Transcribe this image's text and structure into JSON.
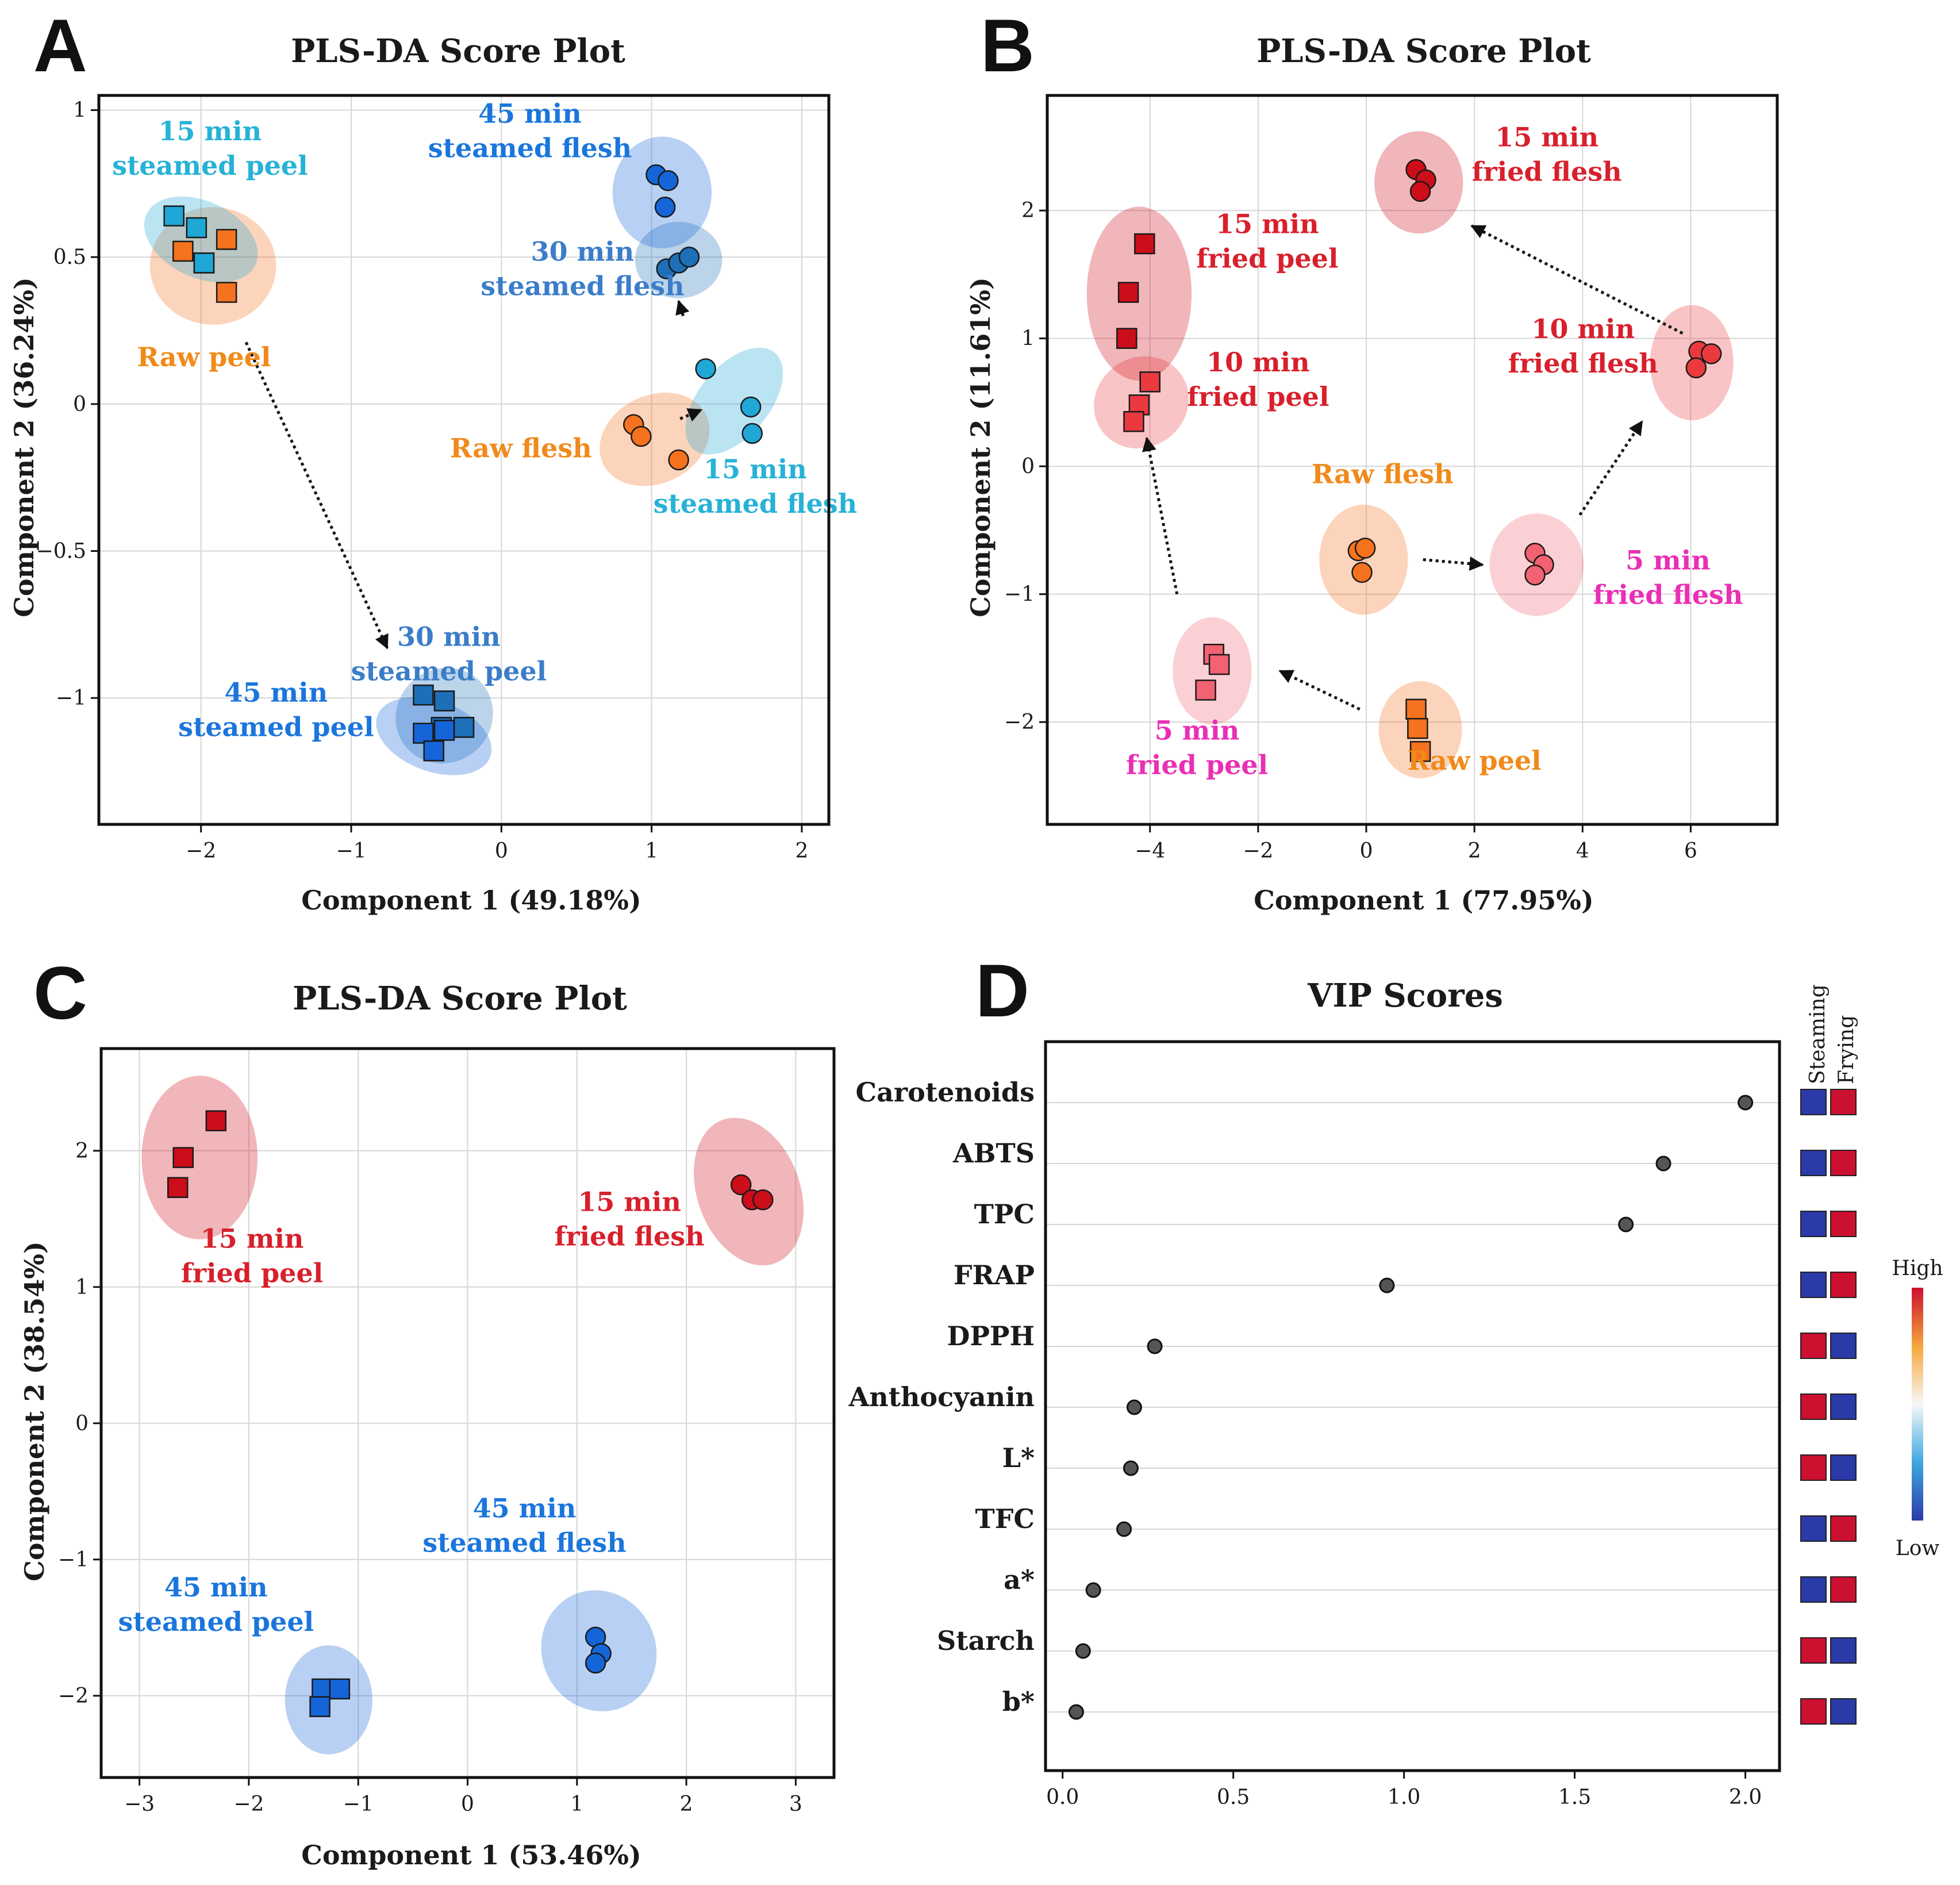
{
  "colors": {
    "raw": "#f5721e",
    "raw_label": "#f08a1a",
    "steam15": "#1fa7d6",
    "steam15_label": "#27b2d6",
    "steam30": "#1d6fb8",
    "steam30_label": "#3b7dc8",
    "steam45": "#1565d8",
    "steam45_label": "#1a76dc",
    "fry_dark": "#cc0d1a",
    "fry_label": "#d8202c",
    "fry10": "#ea3a40",
    "fry5": "#f26272",
    "fry5_label": "#e930b4",
    "vip_red": "#cc1030",
    "vip_blue": "#2a3aa8"
  },
  "chart_data": [
    {
      "id": "A",
      "panel_letter": "A",
      "type": "scatter",
      "title": "PLS-DA Score Plot",
      "xlabel": "Component 1 (49.18%)",
      "ylabel": "Component 2 (36.24%)",
      "xlim": [
        -2.68,
        2.18
      ],
      "ylim": [
        -1.43,
        1.05
      ],
      "xticks": [
        -2,
        -1,
        0,
        1,
        2
      ],
      "xtick_labels": [
        "−2",
        "−1",
        "0",
        "1",
        "2"
      ],
      "yticks": [
        1,
        0.5,
        0,
        -0.5,
        -1
      ],
      "ytick_labels": [
        "1",
        "0.5",
        "0",
        "−0.5",
        "−1"
      ],
      "groups": [
        {
          "name": "Raw peel",
          "marker": "square",
          "color": "#f5721e",
          "label_color": "#f08a1a",
          "label": [
            "Raw peel"
          ],
          "label_pos": [
            -1.98,
            0.16
          ],
          "ellipse": {
            "cx": -1.92,
            "cy": 0.47,
            "rx": 0.42,
            "ry": 0.2,
            "angle": 0
          },
          "points": [
            [
              -1.83,
              0.56
            ],
            [
              -2.12,
              0.52
            ],
            [
              -1.98,
              0.48
            ],
            [
              -1.83,
              0.38
            ]
          ]
        },
        {
          "name": "15 min steamed peel",
          "marker": "square",
          "color": "#1fa7d6",
          "label_color": "#27b2d6",
          "label": [
            "15 min",
            "steamed peel"
          ],
          "label_pos": [
            -1.94,
            0.87
          ],
          "ellipse": {
            "cx": -2.0,
            "cy": 0.56,
            "rx": 0.4,
            "ry": 0.13,
            "angle": 25
          },
          "points": [
            [
              -2.18,
              0.64
            ],
            [
              -2.03,
              0.6
            ],
            [
              -1.98,
              0.48
            ]
          ]
        },
        {
          "name": "30 min steamed peel",
          "marker": "square",
          "color": "#1d6fb8",
          "label_color": "#3b7dc8",
          "label": [
            "30 min",
            "steamed peel"
          ],
          "label_pos": [
            -0.35,
            -0.85
          ],
          "ellipse": {
            "cx": -0.38,
            "cy": -1.06,
            "rx": 0.33,
            "ry": 0.16,
            "angle": -35
          },
          "points": [
            [
              -0.52,
              -0.99
            ],
            [
              -0.38,
              -1.01
            ],
            [
              -0.25,
              -1.1
            ],
            [
              -0.4,
              -1.1
            ]
          ]
        },
        {
          "name": "45 min steamed peel",
          "marker": "square",
          "color": "#1565d8",
          "label_color": "#1a76dc",
          "label": [
            "45 min",
            "steamed peel"
          ],
          "label_pos": [
            -1.5,
            -1.04
          ],
          "ellipse": {
            "cx": -0.45,
            "cy": -1.13,
            "rx": 0.4,
            "ry": 0.12,
            "angle": 20
          },
          "points": [
            [
              -0.52,
              -1.12
            ],
            [
              -0.45,
              -1.18
            ],
            [
              -0.38,
              -1.11
            ]
          ]
        },
        {
          "name": "Raw flesh",
          "marker": "circle",
          "color": "#f5721e",
          "label_color": "#f08a1a",
          "label": [
            "Raw flesh"
          ],
          "label_pos": [
            0.13,
            -0.15
          ],
          "ellipse": {
            "cx": 1.02,
            "cy": -0.12,
            "rx": 0.38,
            "ry": 0.15,
            "angle": -25
          },
          "points": [
            [
              0.88,
              -0.07
            ],
            [
              0.93,
              -0.11
            ],
            [
              1.18,
              -0.19
            ]
          ]
        },
        {
          "name": "15 min steamed flesh",
          "marker": "circle",
          "color": "#1fa7d6",
          "label_color": "#27b2d6",
          "label": [
            "15 min",
            "steamed flesh"
          ],
          "label_pos": [
            1.69,
            -0.28
          ],
          "ellipse": {
            "cx": 1.55,
            "cy": 0.01,
            "rx": 0.42,
            "ry": 0.12,
            "angle": -50
          },
          "points": [
            [
              1.36,
              0.12
            ],
            [
              1.66,
              -0.01
            ],
            [
              1.67,
              -0.1
            ]
          ]
        },
        {
          "name": "30 min steamed flesh",
          "marker": "circle",
          "color": "#1d6fb8",
          "label_color": "#3b7dc8",
          "label": [
            "30 min",
            "steamed flesh"
          ],
          "label_pos": [
            0.54,
            0.46
          ],
          "ellipse": {
            "cx": 1.18,
            "cy": 0.49,
            "rx": 0.29,
            "ry": 0.13,
            "angle": 0
          },
          "points": [
            [
              1.1,
              0.46
            ],
            [
              1.18,
              0.48
            ],
            [
              1.25,
              0.5
            ]
          ]
        },
        {
          "name": "45 min steamed flesh",
          "marker": "circle",
          "color": "#1565d8",
          "label_color": "#1a76dc",
          "label": [
            "45 min",
            "steamed flesh"
          ],
          "label_pos": [
            0.19,
            0.93
          ],
          "ellipse": {
            "cx": 1.07,
            "cy": 0.72,
            "rx": 0.33,
            "ry": 0.19,
            "angle": 0
          },
          "points": [
            [
              1.03,
              0.78
            ],
            [
              1.11,
              0.76
            ],
            [
              1.09,
              0.67
            ]
          ]
        }
      ],
      "arrows": [
        [
          [
            -1.7,
            0.21
          ],
          [
            -0.76,
            -0.83
          ]
        ],
        [
          [
            1.21,
            0.3
          ],
          [
            1.18,
            0.35
          ]
        ],
        [
          [
            1.19,
            -0.05
          ],
          [
            1.33,
            -0.02
          ]
        ]
      ]
    },
    {
      "id": "B",
      "panel_letter": "B",
      "type": "scatter",
      "title": "PLS-DA Score Plot",
      "xlabel": "Component 1 (77.95%)",
      "ylabel": "Component 2 (11.61%)",
      "xlim": [
        -5.9,
        7.6
      ],
      "ylim": [
        -2.8,
        2.9
      ],
      "xticks": [
        -4,
        -2,
        0,
        2,
        4,
        6
      ],
      "xtick_labels": [
        "−4",
        "−2",
        "0",
        "2",
        "4",
        "6"
      ],
      "yticks": [
        2,
        1,
        0,
        -1,
        -2
      ],
      "ytick_labels": [
        "2",
        "1",
        "0",
        "−1",
        "−2"
      ],
      "groups": [
        {
          "name": "Raw peel",
          "marker": "square",
          "color": "#f5721e",
          "label_color": "#f08a1a",
          "label": [
            "Raw peel"
          ],
          "label_pos": [
            2.0,
            -2.3
          ],
          "ellipse": {
            "cx": 1.0,
            "cy": -2.06,
            "rx": 0.77,
            "ry": 0.38,
            "angle": 0
          },
          "points": [
            [
              0.92,
              -1.9
            ],
            [
              0.95,
              -2.05
            ],
            [
              1.0,
              -2.23
            ]
          ]
        },
        {
          "name": "5 min fried peel",
          "marker": "square",
          "color": "#f26272",
          "label_color": "#e930b4",
          "label": [
            "5 min",
            "fried peel"
          ],
          "label_pos": [
            -3.13,
            -2.2
          ],
          "ellipse": {
            "cx": -2.85,
            "cy": -1.6,
            "rx": 0.73,
            "ry": 0.42,
            "angle": 0
          },
          "points": [
            [
              -2.82,
              -1.47
            ],
            [
              -2.72,
              -1.55
            ],
            [
              -2.97,
              -1.75
            ]
          ]
        },
        {
          "name": "10 min fried peel",
          "marker": "square",
          "color": "#ea3a40",
          "label_color": "#d8202c",
          "label": [
            "10 min",
            "fried peel"
          ],
          "label_pos": [
            -2.0,
            0.68
          ],
          "ellipse": {
            "cx": -4.16,
            "cy": 0.5,
            "rx": 0.9,
            "ry": 0.35,
            "angle": -35
          },
          "points": [
            [
              -4.0,
              0.66
            ],
            [
              -4.2,
              0.48
            ],
            [
              -4.3,
              0.35
            ]
          ]
        },
        {
          "name": "15 min fried peel",
          "marker": "square",
          "color": "#cc0d1a",
          "label_color": "#d8202c",
          "label": [
            "15 min",
            "fried peel"
          ],
          "label_pos": [
            -1.83,
            1.76
          ],
          "ellipse": {
            "cx": -4.2,
            "cy": 1.35,
            "rx": 0.97,
            "ry": 0.68,
            "angle": 0
          },
          "points": [
            [
              -4.1,
              1.74
            ],
            [
              -4.4,
              1.36
            ],
            [
              -4.43,
              1.0
            ]
          ]
        },
        {
          "name": "Raw flesh",
          "marker": "circle",
          "color": "#f5721e",
          "label_color": "#f08a1a",
          "label": [
            "Raw flesh"
          ],
          "label_pos": [
            0.3,
            -0.06
          ],
          "ellipse": {
            "cx": -0.05,
            "cy": -0.73,
            "rx": 0.82,
            "ry": 0.43,
            "angle": 0
          },
          "points": [
            [
              -0.15,
              -0.66
            ],
            [
              -0.02,
              -0.64
            ],
            [
              -0.08,
              -0.83
            ]
          ]
        },
        {
          "name": "5 min fried flesh",
          "marker": "circle",
          "color": "#f26272",
          "label_color": "#e930b4",
          "label": [
            "5 min",
            "fried flesh"
          ],
          "label_pos": [
            5.58,
            -0.87
          ],
          "ellipse": {
            "cx": 3.15,
            "cy": -0.77,
            "rx": 0.87,
            "ry": 0.4,
            "angle": 0
          },
          "points": [
            [
              3.12,
              -0.68
            ],
            [
              3.28,
              -0.77
            ],
            [
              3.12,
              -0.85
            ]
          ]
        },
        {
          "name": "10 min fried flesh",
          "marker": "circle",
          "color": "#ea3a40",
          "label_color": "#d8202c",
          "label": [
            "10 min",
            "fried flesh"
          ],
          "label_pos": [
            4.01,
            0.94
          ],
          "ellipse": {
            "cx": 6.02,
            "cy": 0.81,
            "rx": 0.77,
            "ry": 0.45,
            "angle": 0
          },
          "points": [
            [
              6.15,
              0.9
            ],
            [
              6.38,
              0.88
            ],
            [
              6.1,
              0.77
            ]
          ]
        },
        {
          "name": "15 min fried flesh",
          "marker": "circle",
          "color": "#cc0d1a",
          "label_color": "#d8202c",
          "label": [
            "15 min",
            "fried flesh"
          ],
          "label_pos": [
            3.34,
            2.44
          ],
          "ellipse": {
            "cx": 0.97,
            "cy": 2.22,
            "rx": 0.82,
            "ry": 0.4,
            "angle": 0
          },
          "points": [
            [
              0.92,
              2.32
            ],
            [
              1.1,
              2.24
            ],
            [
              1.0,
              2.15
            ]
          ]
        }
      ],
      "arrows": [
        [
          [
            -0.12,
            -1.9
          ],
          [
            -1.6,
            -1.6
          ]
        ],
        [
          [
            -3.5,
            -1.0
          ],
          [
            -4.06,
            0.22
          ]
        ],
        [
          [
            1.05,
            -0.73
          ],
          [
            2.15,
            -0.77
          ]
        ],
        [
          [
            3.95,
            -0.38
          ],
          [
            5.1,
            0.35
          ]
        ],
        [
          [
            5.85,
            1.04
          ],
          [
            1.95,
            1.88
          ]
        ]
      ]
    },
    {
      "id": "C",
      "panel_letter": "C",
      "type": "scatter",
      "title": "PLS-DA Score Plot",
      "xlabel": "Component 1 (53.46%)",
      "ylabel": "Component 2 (38.54%)",
      "xlim": [
        -3.35,
        3.35
      ],
      "ylim": [
        -2.6,
        2.75
      ],
      "xticks": [
        -3,
        -2,
        -1,
        0,
        1,
        2,
        3
      ],
      "xtick_labels": [
        "−3",
        "−2",
        "−1",
        "0",
        "1",
        "2",
        "3"
      ],
      "yticks": [
        2,
        1,
        0,
        -1,
        -2
      ],
      "ytick_labels": [
        "2",
        "1",
        "0",
        "−1",
        "−2"
      ],
      "groups": [
        {
          "name": "15 min fried peel",
          "marker": "square",
          "color": "#cc0d1a",
          "label_color": "#d8202c",
          "label": [
            "15 min",
            "fried peel"
          ],
          "label_pos": [
            -1.97,
            1.23
          ],
          "ellipse": {
            "cx": -2.45,
            "cy": 1.95,
            "rx": 0.53,
            "ry": 0.6,
            "angle": 0
          },
          "points": [
            [
              -2.3,
              2.22
            ],
            [
              -2.6,
              1.95
            ],
            [
              -2.65,
              1.73
            ]
          ]
        },
        {
          "name": "15 min fried flesh",
          "marker": "circle",
          "color": "#cc0d1a",
          "label_color": "#d8202c",
          "label": [
            "15 min",
            "fried flesh"
          ],
          "label_pos": [
            1.48,
            1.5
          ],
          "ellipse": {
            "cx": 2.57,
            "cy": 1.7,
            "rx": 0.47,
            "ry": 0.56,
            "angle": -20
          },
          "points": [
            [
              2.5,
              1.75
            ],
            [
              2.6,
              1.64
            ],
            [
              2.7,
              1.64
            ]
          ]
        },
        {
          "name": "45 min steamed peel",
          "marker": "square",
          "color": "#1565d8",
          "label_color": "#1a76dc",
          "label": [
            "45 min",
            "steamed peel"
          ],
          "label_pos": [
            -2.3,
            -1.33
          ],
          "ellipse": {
            "cx": -1.27,
            "cy": -2.03,
            "rx": 0.4,
            "ry": 0.4,
            "angle": 0
          },
          "points": [
            [
              -1.33,
              -1.95
            ],
            [
              -1.17,
              -1.95
            ],
            [
              -1.35,
              -2.08
            ]
          ]
        },
        {
          "name": "45 min steamed flesh",
          "marker": "circle",
          "color": "#1565d8",
          "label_color": "#1a76dc",
          "label": [
            "45 min",
            "steamed flesh"
          ],
          "label_pos": [
            0.52,
            -0.75
          ],
          "ellipse": {
            "cx": 1.2,
            "cy": -1.67,
            "rx": 0.52,
            "ry": 0.45,
            "angle": -25
          },
          "points": [
            [
              1.17,
              -1.57
            ],
            [
              1.22,
              -1.69
            ],
            [
              1.17,
              -1.76
            ]
          ]
        }
      ],
      "arrows": []
    },
    {
      "id": "D",
      "panel_letter": "D",
      "type": "vip_dot",
      "title": "VIP Scores",
      "xlim": [
        -0.05,
        2.1
      ],
      "xticks": [
        0.0,
        0.5,
        1.0,
        1.5,
        2.0
      ],
      "xtick_labels": [
        "0.0",
        "0.5",
        "1.0",
        "1.5",
        "2.0"
      ],
      "categories": [
        "Carotenoids",
        "ABTS",
        "TPC",
        "FRAP",
        "DPPH",
        "Anthocyanin",
        "L*",
        "TFC",
        "a*",
        "Starch",
        "b*"
      ],
      "values": [
        2.0,
        1.76,
        1.65,
        0.95,
        0.27,
        0.21,
        0.2,
        0.18,
        0.09,
        0.06,
        0.04
      ],
      "heatmap_columns": [
        "Steaming",
        "Frying"
      ],
      "heatmap_levels": [
        [
          "low",
          "high"
        ],
        [
          "low",
          "high"
        ],
        [
          "low",
          "high"
        ],
        [
          "low",
          "high"
        ],
        [
          "high",
          "low"
        ],
        [
          "high",
          "low"
        ],
        [
          "high",
          "low"
        ],
        [
          "low",
          "high"
        ],
        [
          "low",
          "high"
        ],
        [
          "high",
          "low"
        ],
        [
          "high",
          "low"
        ]
      ],
      "legend": {
        "high": "High",
        "low": "Low"
      }
    }
  ]
}
